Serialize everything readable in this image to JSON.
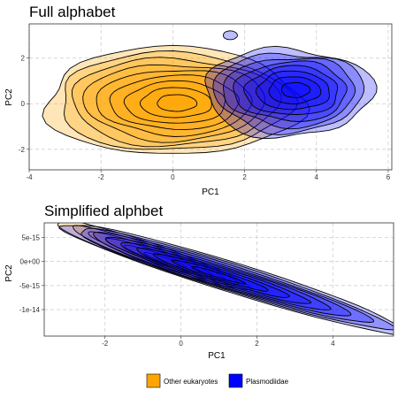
{
  "chart_data": [
    {
      "type": "area",
      "subtype": "2d-density-contour",
      "title": "Full alphabet",
      "xlabel": "PC1",
      "ylabel": "PC2",
      "xlim": [
        -4,
        6.1
      ],
      "ylim": [
        -2.9,
        3.5
      ],
      "xticks": [
        -4,
        -2,
        0,
        2,
        4,
        6
      ],
      "yticks": [
        -2,
        0,
        2
      ],
      "xtick_labels": [
        "-4",
        "-2",
        "0",
        "2",
        "4",
        "6"
      ],
      "ytick_labels": [
        "-2",
        "0",
        "2"
      ],
      "grid": true,
      "series": [
        {
          "name": "Other eukaryotes",
          "color": "#ffa500",
          "center": [
            0.0,
            0.1
          ],
          "levels": 9,
          "outer_extent_x": [
            -3.6,
            2.6
          ],
          "outer_extent_y": [
            -2.5,
            2.3
          ]
        },
        {
          "name": "Plasmodiidae",
          "color": "#0000ff",
          "center": [
            3.2,
            0.5
          ],
          "levels": 8,
          "outer_extent_x": [
            1.2,
            5.9
          ],
          "outer_extent_y": [
            -1.3,
            2.3
          ],
          "extra_blob": [
            1.6,
            3.0
          ]
        }
      ]
    },
    {
      "type": "area",
      "subtype": "2d-density-contour",
      "title": "Simplified alphbet",
      "xlabel": "PC1",
      "ylabel": "PC2",
      "xlim": [
        -3.6,
        5.6
      ],
      "ylim": [
        -1.55e-14,
        8e-15
      ],
      "xticks": [
        -2,
        0,
        2,
        4
      ],
      "yticks": [
        5e-15,
        0,
        -5e-15,
        -1e-14
      ],
      "xtick_labels": [
        "-2",
        "0",
        "2",
        "4"
      ],
      "ytick_labels": [
        "5e-15",
        "0e+00",
        "-5e-15",
        "-1e-14"
      ],
      "grid": true,
      "series": [
        {
          "name": "Other eukaryotes",
          "color": "#ffa500",
          "center": [
            -0.8,
            1.5e-15
          ],
          "levels": 6
        },
        {
          "name": "Plasmodiidae",
          "color": "#0000ff",
          "center": [
            1.4,
            -3.5e-15
          ],
          "levels": 9
        }
      ]
    }
  ],
  "legend": {
    "placement": "bottom",
    "items": [
      {
        "label": "Other eukaryotes",
        "color": "#ffa500"
      },
      {
        "label": "Plasmodiidae",
        "color": "#0000ff"
      }
    ]
  }
}
